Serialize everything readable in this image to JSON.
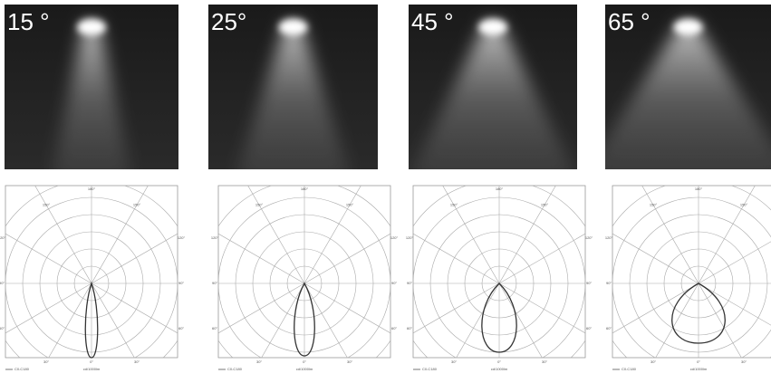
{
  "panels": [
    {
      "label": "15 °"
    },
    {
      "label": "25°"
    },
    {
      "label": "45 °"
    },
    {
      "label": "65 °"
    }
  ],
  "polar": {
    "angle_labels": [
      "180°",
      "150°",
      "150°",
      "120°",
      "120°",
      "90°",
      "90°",
      "60°",
      "60°",
      "0°",
      "30°",
      "30°"
    ],
    "legend": "C0-C180",
    "unit": "cd/1000lm"
  }
}
